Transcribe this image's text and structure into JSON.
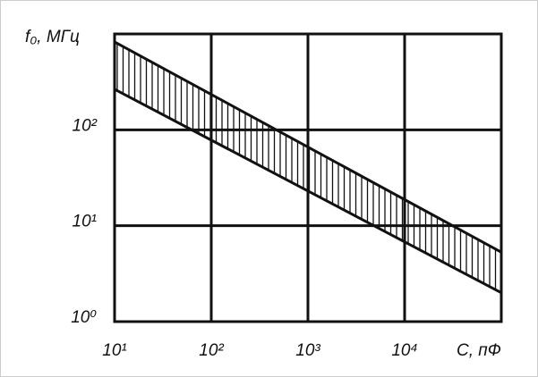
{
  "chart_data": {
    "type": "band",
    "x_label": "C, пФ",
    "y_label": "f₀, МГц",
    "x": [
      10,
      100000
    ],
    "series": [
      {
        "color": "#111111",
        "values": [
          826,
          5.3
        ]
      },
      {
        "color": "#111111",
        "values": [
          265,
          2.0
        ]
      }
    ],
    "log_x": true,
    "log_y": true,
    "grid": true,
    "hatch": "vertical",
    "xlim": [
      10,
      100000
    ],
    "ylim": [
      1,
      1000
    ],
    "xticks": [
      {
        "value": 10,
        "label": "10¹"
      },
      {
        "value": 100,
        "label": "10²"
      },
      {
        "value": 1000,
        "label": "10³"
      },
      {
        "value": 10000,
        "label": "10⁴"
      }
    ],
    "yticks": [
      {
        "value": 1,
        "label": "10⁰"
      },
      {
        "value": 10,
        "label": "10¹"
      },
      {
        "value": 100,
        "label": "10²"
      }
    ]
  }
}
